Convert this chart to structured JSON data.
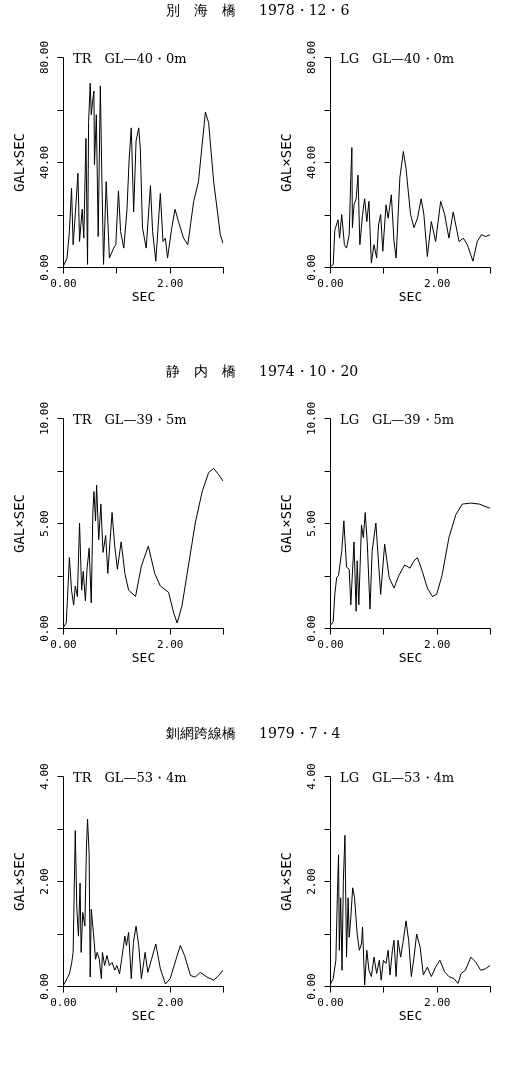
{
  "chart_data": [
    {
      "type": "line",
      "title": "別　海　橋",
      "xlabel": "SEC",
      "ylabel": "GAL×SEC",
      "annotations": [
        "TR　GL—40・0m"
      ],
      "xlim": [
        0,
        3
      ],
      "ylim": [
        0,
        80
      ],
      "xticks": [
        {
          "value": 0,
          "label": "0.00"
        },
        {
          "value": 1,
          "label": null
        },
        {
          "value": 2,
          "label": "2.00"
        },
        {
          "value": 3,
          "label": null
        }
      ],
      "yticks": [
        {
          "value": 0,
          "label": "0.00"
        },
        {
          "value": 20,
          "label": null
        },
        {
          "value": 40,
          "label": "40.00"
        },
        {
          "value": 60,
          "label": null
        },
        {
          "value": 80,
          "label": "80.00"
        }
      ],
      "x": [
        0,
        0.075,
        0.12,
        0.16,
        0.19,
        0.23,
        0.28,
        0.31,
        0.36,
        0.39,
        0.43,
        0.46,
        0.48,
        0.51,
        0.53,
        0.56,
        0.58,
        0.59,
        0.625,
        0.66,
        0.7,
        0.73,
        0.76,
        0.81,
        0.87,
        0.95,
        0.99,
        1.04,
        1.08,
        1.14,
        1.2,
        1.24,
        1.28,
        1.325,
        1.37,
        1.42,
        1.45,
        1.49,
        1.56,
        1.64,
        1.68,
        1.74,
        1.825,
        1.875,
        1.92,
        1.96,
        2.04,
        2.1,
        2.17,
        2.26,
        2.34,
        2.45,
        2.54,
        2.67,
        2.73,
        2.825,
        2.95,
        3.0
      ],
      "series": [
        {
          "color": "#000000",
          "values": [
            0,
            3.4,
            13.5,
            30,
            8.5,
            20,
            35.7,
            9.7,
            22,
            11,
            49,
            1,
            55,
            70,
            58,
            64,
            67,
            39,
            58,
            11.6,
            69,
            32.5,
            1,
            32.5,
            3.4,
            7.2,
            8.5,
            29,
            13.5,
            7.2,
            22,
            41,
            53,
            21,
            48,
            53,
            45,
            15,
            7.2,
            31,
            13.5,
            2.2,
            28,
            9.7,
            11,
            3.4,
            15,
            22,
            17,
            11,
            8.5,
            25,
            32.5,
            59,
            55,
            32.5,
            12.3,
            9.1
          ]
        }
      ]
    },
    {
      "type": "line",
      "title": "1978・12・6",
      "xlabel": "SEC",
      "ylabel": "GAL×SEC",
      "annotations": [
        "LG　GL—40・0m"
      ],
      "xlim": [
        0,
        3
      ],
      "ylim": [
        0,
        80
      ],
      "xticks": [
        {
          "value": 0,
          "label": "0.00"
        },
        {
          "value": 1,
          "label": null
        },
        {
          "value": 2,
          "label": "2.00"
        },
        {
          "value": 3,
          "label": null
        }
      ],
      "yticks": [
        {
          "value": 0,
          "label": "0.00"
        },
        {
          "value": 20,
          "label": null
        },
        {
          "value": 40,
          "label": "40.00"
        },
        {
          "value": 60,
          "label": null
        },
        {
          "value": 80,
          "label": "80.00"
        }
      ],
      "x": [
        0,
        0.06,
        0.09,
        0.15,
        0.18,
        0.22,
        0.27,
        0.31,
        0.36,
        0.39,
        0.41,
        0.42,
        0.45,
        0.49,
        0.525,
        0.56,
        0.61,
        0.65,
        0.69,
        0.73,
        0.775,
        0.825,
        0.875,
        0.91,
        0.95,
        0.99,
        1.05,
        1.09,
        1.15,
        1.2,
        1.24,
        1.31,
        1.375,
        1.425,
        1.51,
        1.575,
        1.64,
        1.71,
        1.76,
        1.825,
        1.9,
        1.98,
        2.075,
        2.15,
        2.23,
        2.31,
        2.42,
        2.5,
        2.575,
        2.68,
        2.76,
        2.84,
        2.92,
        3.0
      ],
      "series": [
        {
          "color": "#000000",
          "values": [
            0,
            0.9,
            14,
            18,
            11,
            20,
            8.5,
            7.2,
            12.3,
            34,
            45.5,
            15,
            23.7,
            26,
            35,
            8.5,
            20,
            26,
            17.3,
            25,
            1.5,
            8.5,
            3.4,
            16,
            20,
            6,
            23.7,
            18.6,
            27.5,
            9.7,
            3.4,
            34,
            44,
            37.6,
            20,
            15,
            18.6,
            26,
            20,
            4,
            17.3,
            9.7,
            25,
            20,
            11,
            21,
            9.7,
            11,
            8.5,
            2.2,
            9.7,
            12.3,
            11.6,
            12.3
          ]
        }
      ]
    },
    {
      "type": "line",
      "title": "静　内　橋",
      "xlabel": "SEC",
      "ylabel": "GAL×SEC",
      "annotations": [
        "TR　GL—39・5m"
      ],
      "xlim": [
        0,
        3
      ],
      "ylim": [
        0,
        10
      ],
      "xticks": [
        {
          "value": 0,
          "label": "0.00"
        },
        {
          "value": 1,
          "label": null
        },
        {
          "value": 2,
          "label": "2.00"
        },
        {
          "value": 3,
          "label": null
        }
      ],
      "yticks": [
        {
          "value": 0,
          "label": "0.00"
        },
        {
          "value": 2.5,
          "label": null
        },
        {
          "value": 5,
          "label": "5.00"
        },
        {
          "value": 7.5,
          "label": null
        },
        {
          "value": 10,
          "label": "10.00"
        }
      ],
      "x": [
        0,
        0.06,
        0.08,
        0.12,
        0.16,
        0.2,
        0.23,
        0.27,
        0.31,
        0.35,
        0.38,
        0.42,
        0.45,
        0.49,
        0.53,
        0.56,
        0.58,
        0.61,
        0.63,
        0.67,
        0.71,
        0.75,
        0.8,
        0.84,
        0.92,
        0.97,
        1.02,
        1.09,
        1.16,
        1.23,
        1.36,
        1.47,
        1.6,
        1.72,
        1.825,
        1.98,
        2.075,
        2.14,
        2.23,
        2.36,
        2.48,
        2.61,
        2.73,
        2.825,
        2.92,
        3.0
      ],
      "series": [
        {
          "color": "#000000",
          "values": [
            0,
            0.24,
            1.2,
            3.35,
            1.8,
            1.1,
            2.0,
            1.5,
            5.0,
            1.8,
            2.7,
            1.3,
            2.8,
            3.8,
            1.2,
            5.5,
            6.5,
            5.1,
            6.8,
            4.2,
            5.9,
            3.6,
            4.4,
            2.6,
            5.5,
            3.9,
            2.8,
            4.1,
            2.6,
            1.8,
            1.5,
            2.95,
            3.9,
            2.6,
            2.0,
            1.7,
            0.72,
            0.24,
            1.04,
            3.1,
            5.0,
            6.5,
            7.4,
            7.6,
            7.3,
            7.0
          ]
        }
      ]
    },
    {
      "type": "line",
      "title": "1974・10・20",
      "xlabel": "SEC",
      "ylabel": "GAL×SEC",
      "annotations": [
        "LG　GL—39・5m"
      ],
      "xlim": [
        0,
        3
      ],
      "ylim": [
        0,
        10
      ],
      "xticks": [
        {
          "value": 0,
          "label": "0.00"
        },
        {
          "value": 1,
          "label": null
        },
        {
          "value": 2,
          "label": "2.00"
        },
        {
          "value": 3,
          "label": null
        }
      ],
      "yticks": [
        {
          "value": 0,
          "label": "0.00"
        },
        {
          "value": 2.5,
          "label": null
        },
        {
          "value": 5,
          "label": "5.00"
        },
        {
          "value": 7.5,
          "label": null
        },
        {
          "value": 10,
          "label": "10.00"
        }
      ],
      "x": [
        0,
        0.06,
        0.09,
        0.125,
        0.16,
        0.22,
        0.26,
        0.31,
        0.36,
        0.39,
        0.45,
        0.49,
        0.51,
        0.54,
        0.59,
        0.625,
        0.66,
        0.7,
        0.75,
        0.79,
        0.86,
        0.95,
        1.025,
        1.11,
        1.2,
        1.29,
        1.4,
        1.5,
        1.575,
        1.64,
        1.73,
        1.825,
        1.92,
        2.0,
        2.1,
        2.23,
        2.36,
        2.48,
        2.64,
        2.8,
        3.0
      ],
      "series": [
        {
          "color": "#000000",
          "values": [
            0.1,
            0.3,
            1.6,
            2.4,
            2.5,
            3.65,
            5.1,
            2.9,
            2.8,
            1.1,
            4.1,
            0.8,
            3.2,
            1.1,
            4.9,
            4.3,
            5.5,
            4.0,
            0.9,
            3.65,
            5.0,
            1.6,
            4.0,
            2.4,
            1.9,
            2.5,
            3.0,
            2.85,
            3.2,
            3.35,
            2.7,
            1.9,
            1.5,
            1.6,
            2.5,
            4.3,
            5.4,
            5.9,
            5.95,
            5.9,
            5.7
          ]
        }
      ]
    },
    {
      "type": "line",
      "title": "釧網跨線橋",
      "xlabel": "SEC",
      "ylabel": "GAL×SEC",
      "annotations": [
        "TR　GL—53・4m"
      ],
      "xlim": [
        0,
        3
      ],
      "ylim": [
        0,
        4
      ],
      "xticks": [
        {
          "value": 0,
          "label": "0.00"
        },
        {
          "value": 1,
          "label": null
        },
        {
          "value": 2,
          "label": "2.00"
        },
        {
          "value": 3,
          "label": null
        }
      ],
      "yticks": [
        {
          "value": 0,
          "label": "0.00"
        },
        {
          "value": 1,
          "label": null
        },
        {
          "value": 2,
          "label": "2.00"
        },
        {
          "value": 3,
          "label": null
        },
        {
          "value": 4,
          "label": "4.00"
        }
      ],
      "x": [
        0,
        0.075,
        0.12,
        0.16,
        0.19,
        0.23,
        0.26,
        0.29,
        0.32,
        0.34,
        0.37,
        0.41,
        0.44,
        0.46,
        0.49,
        0.51,
        0.53,
        0.57,
        0.61,
        0.64,
        0.68,
        0.72,
        0.74,
        0.78,
        0.825,
        0.87,
        0.92,
        0.97,
        1.01,
        1.06,
        1.1,
        1.16,
        1.19,
        1.23,
        1.28,
        1.32,
        1.37,
        1.42,
        1.47,
        1.54,
        1.59,
        1.66,
        1.74,
        1.825,
        1.92,
        2.01,
        2.12,
        2.2,
        2.28,
        2.39,
        2.48,
        2.575,
        2.7,
        2.825,
        2.92,
        3.0
      ],
      "series": [
        {
          "color": "#000000",
          "values": [
            0,
            0.14,
            0.23,
            0.42,
            0.64,
            2.96,
            1.46,
            0.95,
            1.96,
            0.64,
            1.4,
            1.14,
            2.65,
            3.18,
            2.52,
            0.17,
            1.46,
            1.02,
            0.51,
            0.64,
            0.51,
            0.14,
            0.64,
            0.39,
            0.58,
            0.39,
            0.45,
            0.3,
            0.39,
            0.23,
            0.51,
            0.95,
            0.77,
            1.02,
            0.14,
            0.83,
            1.14,
            0.77,
            0.14,
            0.64,
            0.26,
            0.51,
            0.8,
            0.33,
            0.04,
            0.14,
            0.51,
            0.77,
            0.58,
            0.2,
            0.17,
            0.26,
            0.17,
            0.11,
            0.2,
            0.3
          ]
        }
      ]
    },
    {
      "type": "line",
      "title": "1979・7・4",
      "xlabel": "SEC",
      "ylabel": "GAL×SEC",
      "annotations": [
        "LG　GL—53・4m"
      ],
      "xlim": [
        0,
        3
      ],
      "ylim": [
        0,
        4
      ],
      "xticks": [
        {
          "value": 0,
          "label": "0.00"
        },
        {
          "value": 1,
          "label": null
        },
        {
          "value": 2,
          "label": "2.00"
        },
        {
          "value": 3,
          "label": null
        }
      ],
      "yticks": [
        {
          "value": 0,
          "label": "0.00"
        },
        {
          "value": 1,
          "label": null
        },
        {
          "value": 2,
          "label": "2.00"
        },
        {
          "value": 3,
          "label": null
        },
        {
          "value": 4,
          "label": "4.00"
        }
      ],
      "x": [
        0,
        0.06,
        0.11,
        0.14,
        0.16,
        0.175,
        0.2,
        0.225,
        0.25,
        0.28,
        0.31,
        0.34,
        0.36,
        0.39,
        0.425,
        0.46,
        0.51,
        0.55,
        0.59,
        0.61,
        0.65,
        0.69,
        0.73,
        0.775,
        0.825,
        0.875,
        0.925,
        0.96,
        1.0,
        1.05,
        1.09,
        1.125,
        1.17,
        1.2,
        1.24,
        1.275,
        1.325,
        1.375,
        1.425,
        1.475,
        1.525,
        1.575,
        1.625,
        1.69,
        1.75,
        1.825,
        1.9,
        1.98,
        2.06,
        2.15,
        2.23,
        2.325,
        2.4,
        2.46,
        2.54,
        2.64,
        2.73,
        2.825,
        2.92,
        3.0
      ],
      "series": [
        {
          "color": "#000000",
          "values": [
            0.02,
            0.14,
            0.49,
            1.8,
            2.5,
            0.68,
            1.68,
            0.3,
            1.99,
            2.87,
            0.55,
            1.68,
            0.93,
            1.3,
            1.87,
            1.68,
            0.99,
            0.68,
            0.8,
            1.12,
            0.02,
            0.68,
            0.3,
            0.18,
            0.55,
            0.24,
            0.49,
            0.11,
            0.49,
            0.43,
            0.68,
            0.21,
            0.68,
            0.87,
            0.18,
            0.87,
            0.55,
            0.87,
            1.24,
            0.87,
            0.18,
            0.55,
            0.99,
            0.74,
            0.21,
            0.36,
            0.18,
            0.36,
            0.49,
            0.27,
            0.18,
            0.14,
            0.05,
            0.24,
            0.3,
            0.55,
            0.46,
            0.3,
            0.33,
            0.39
          ]
        }
      ]
    }
  ]
}
